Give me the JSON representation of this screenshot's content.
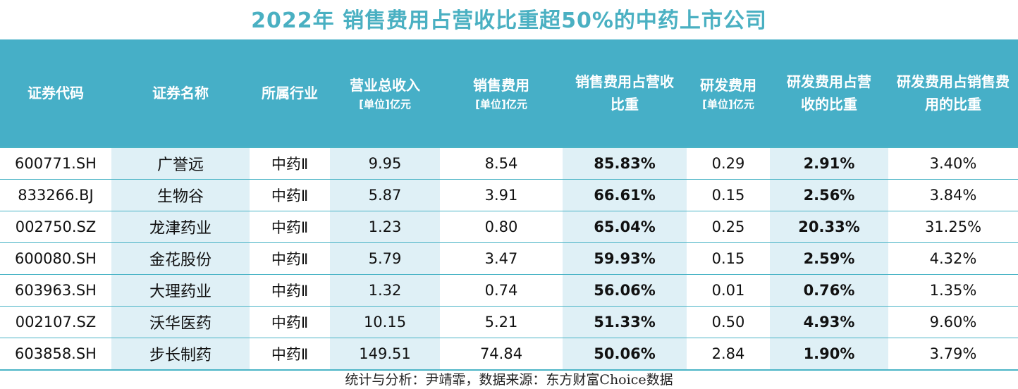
{
  "title": "2022年 销售费用占营收比重超50%的中药上市公司",
  "headers": [
    {
      "main": "证券代码",
      "unit": ""
    },
    {
      "main": "证券名称",
      "unit": ""
    },
    {
      "main": "所属行业",
      "unit": ""
    },
    {
      "main": "营业总收入",
      "unit": "[单位]亿元"
    },
    {
      "main": "销售费用",
      "unit": "[单位]亿元"
    },
    {
      "main": "销售费用占营收比重",
      "unit": ""
    },
    {
      "main": "研发费用",
      "unit": "[单位]亿元"
    },
    {
      "main": "研发费用占营收的比重",
      "unit": ""
    },
    {
      "main": "研发费用占销售费用的比重",
      "unit": ""
    }
  ],
  "rows": [
    [
      "600771.SH",
      "广誉远",
      "中药Ⅱ",
      "9.95",
      "8.54",
      "85.83%",
      "0.29",
      "2.91%",
      "3.40%"
    ],
    [
      "833266.BJ",
      "生物谷",
      "中药Ⅱ",
      "5.87",
      "3.91",
      "66.61%",
      "0.15",
      "2.56%",
      "3.84%"
    ],
    [
      "002750.SZ",
      "龙津药业",
      "中药Ⅱ",
      "1.23",
      "0.80",
      "65.04%",
      "0.25",
      "20.33%",
      "31.25%"
    ],
    [
      "600080.SH",
      "金花股份",
      "中药Ⅱ",
      "5.79",
      "3.47",
      "59.93%",
      "0.15",
      "2.59%",
      "4.32%"
    ],
    [
      "603963.SH",
      "大理药业",
      "中药Ⅱ",
      "1.32",
      "0.74",
      "56.06%",
      "0.01",
      "0.76%",
      "1.35%"
    ],
    [
      "002107.SZ",
      "沃华医药",
      "中药Ⅱ",
      "10.15",
      "5.21",
      "51.33%",
      "0.50",
      "4.93%",
      "9.60%"
    ],
    [
      "603858.SH",
      "步长制药",
      "中药Ⅱ",
      "149.51",
      "74.84",
      "50.06%",
      "2.84",
      "1.90%",
      "3.79%"
    ]
  ],
  "footer": "统计与分析：尹靖霏，数据来源：东方财富Choice数据",
  "colors": {
    "title": "#4ab0c2",
    "header_bg": "#46afc7",
    "stripe": "#dff0f6",
    "border": "#4ab4c6"
  },
  "chart_data": {
    "type": "table",
    "title": "2022年 销售费用占营收比重超50%的中药上市公司",
    "columns": [
      "证券代码",
      "证券名称",
      "所属行业",
      "营业总收入",
      "销售费用",
      "销售费用占营收比重",
      "研发费用",
      "研发费用占营收的比重",
      "研发费用占销售费用的比重"
    ],
    "units": [
      "",
      "",
      "",
      "[单位]亿元",
      "[单位]亿元",
      "",
      "[单位]亿元",
      "",
      ""
    ],
    "rows": [
      [
        "600771.SH",
        "广誉远",
        "中药Ⅱ",
        9.95,
        8.54,
        "85.83%",
        0.29,
        "2.91%",
        "3.40%"
      ],
      [
        "833266.BJ",
        "生物谷",
        "中药Ⅱ",
        5.87,
        3.91,
        "66.61%",
        0.15,
        "2.56%",
        "3.84%"
      ],
      [
        "002750.SZ",
        "龙津药业",
        "中药Ⅱ",
        1.23,
        0.8,
        "65.04%",
        0.25,
        "20.33%",
        "31.25%"
      ],
      [
        "600080.SH",
        "金花股份",
        "中药Ⅱ",
        5.79,
        3.47,
        "59.93%",
        0.15,
        "2.59%",
        "4.32%"
      ],
      [
        "603963.SH",
        "大理药业",
        "中药Ⅱ",
        1.32,
        0.74,
        "56.06%",
        0.01,
        "0.76%",
        "1.35%"
      ],
      [
        "002107.SZ",
        "沃华医药",
        "中药Ⅱ",
        10.15,
        5.21,
        "51.33%",
        0.5,
        "4.93%",
        "9.60%"
      ],
      [
        "603858.SH",
        "步长制药",
        "中药Ⅱ",
        149.51,
        74.84,
        "50.06%",
        2.84,
        "1.90%",
        "3.79%"
      ]
    ]
  }
}
